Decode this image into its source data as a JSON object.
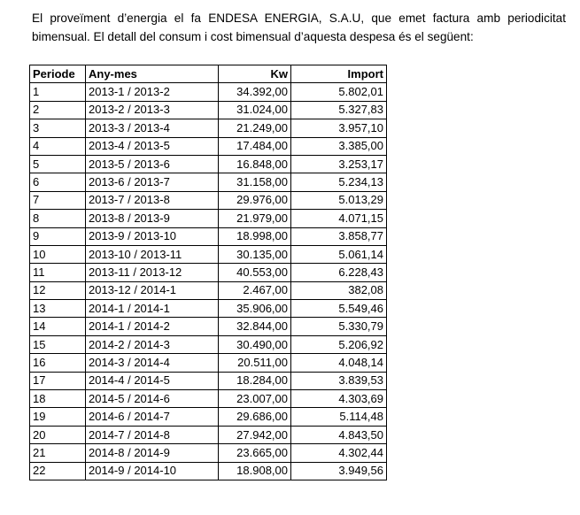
{
  "intro": {
    "line1": "El proveïment d’energia el fa ENDESA ENERGIA, S.A.U, que emet factura amb periodicitat",
    "line2": "bimensual. El detall del consum i cost bimensual d’aquesta despesa és el següent:"
  },
  "table": {
    "headers": {
      "periode": "Periode",
      "any_mes": "Any-mes",
      "kw": "Kw",
      "import": "Import"
    },
    "rows": [
      {
        "periode": "1",
        "any_mes": "2013-1 / 2013-2",
        "kw": "34.392,00",
        "import": "5.802,01"
      },
      {
        "periode": "2",
        "any_mes": "2013-2 / 2013-3",
        "kw": "31.024,00",
        "import": "5.327,83"
      },
      {
        "periode": "3",
        "any_mes": "2013-3 / 2013-4",
        "kw": "21.249,00",
        "import": "3.957,10"
      },
      {
        "periode": "4",
        "any_mes": "2013-4 / 2013-5",
        "kw": "17.484,00",
        "import": "3.385,00"
      },
      {
        "periode": "5",
        "any_mes": "2013-5 / 2013-6",
        "kw": "16.848,00",
        "import": "3.253,17"
      },
      {
        "periode": "6",
        "any_mes": "2013-6 / 2013-7",
        "kw": "31.158,00",
        "import": "5.234,13"
      },
      {
        "periode": "7",
        "any_mes": "2013-7 / 2013-8",
        "kw": "29.976,00",
        "import": "5.013,29"
      },
      {
        "periode": "8",
        "any_mes": "2013-8 / 2013-9",
        "kw": "21.979,00",
        "import": "4.071,15"
      },
      {
        "periode": "9",
        "any_mes": "2013-9 / 2013-10",
        "kw": "18.998,00",
        "import": "3.858,77"
      },
      {
        "periode": "10",
        "any_mes": "2013-10 / 2013-11",
        "kw": "30.135,00",
        "import": "5.061,14"
      },
      {
        "periode": "11",
        "any_mes": "2013-11 / 2013-12",
        "kw": "40.553,00",
        "import": "6.228,43"
      },
      {
        "periode": "12",
        "any_mes": "2013-12 / 2014-1",
        "kw": "2.467,00",
        "import": "382,08"
      },
      {
        "periode": "13",
        "any_mes": "2014-1 / 2014-1",
        "kw": "35.906,00",
        "import": "5.549,46"
      },
      {
        "periode": "14",
        "any_mes": "2014-1 / 2014-2",
        "kw": "32.844,00",
        "import": "5.330,79"
      },
      {
        "periode": "15",
        "any_mes": "2014-2 / 2014-3",
        "kw": "30.490,00",
        "import": "5.206,92"
      },
      {
        "periode": "16",
        "any_mes": "2014-3 / 2014-4",
        "kw": "20.511,00",
        "import": "4.048,14"
      },
      {
        "periode": "17",
        "any_mes": "2014-4 / 2014-5",
        "kw": "18.284,00",
        "import": "3.839,53"
      },
      {
        "periode": "18",
        "any_mes": "2014-5 / 2014-6",
        "kw": "23.007,00",
        "import": "4.303,69"
      },
      {
        "periode": "19",
        "any_mes": "2014-6 / 2014-7",
        "kw": "29.686,00",
        "import": "5.114,48"
      },
      {
        "periode": "20",
        "any_mes": "2014-7 / 2014-8",
        "kw": "27.942,00",
        "import": "4.843,50"
      },
      {
        "periode": "21",
        "any_mes": "2014-8 / 2014-9",
        "kw": "23.665,00",
        "import": "4.302,44"
      },
      {
        "periode": "22",
        "any_mes": "2014-9 / 2014-10",
        "kw": "18.908,00",
        "import": "3.949,56"
      }
    ]
  }
}
